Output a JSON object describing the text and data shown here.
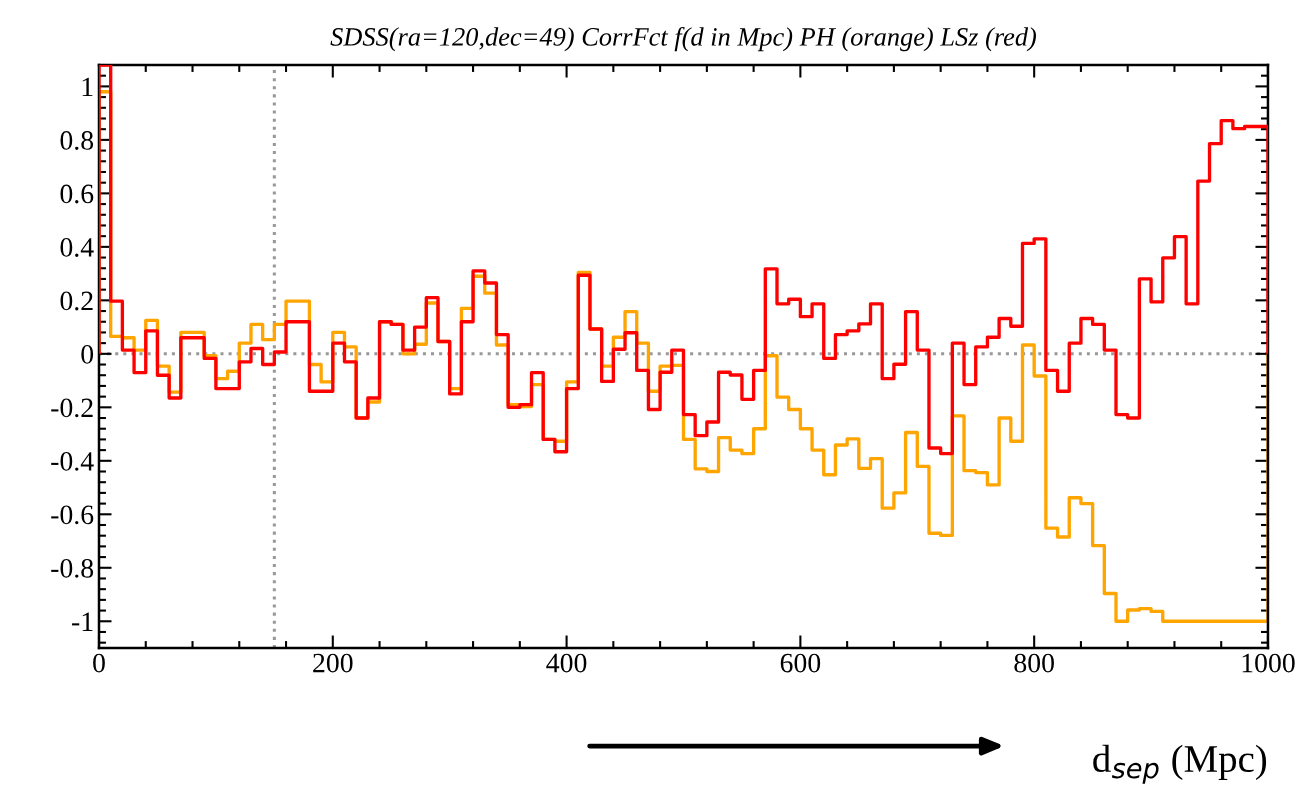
{
  "chart_data": {
    "type": "histogram",
    "title": "SDSS(ra=120,dec=49) CorrFct f(d in Mpc) PH (orange) LSz (red)",
    "xlabel": "d$_{sep}$ (Mpc)",
    "bins": [
      0,
      10,
      20,
      30,
      40,
      50,
      60,
      70,
      80,
      90,
      100,
      110,
      120,
      130,
      140,
      150,
      160,
      170,
      180,
      190,
      200,
      210,
      220,
      230,
      240,
      250,
      260,
      270,
      280,
      290,
      300,
      310,
      320,
      330,
      340,
      350,
      360,
      370,
      380,
      390,
      400,
      410,
      420,
      430,
      440,
      450,
      460,
      470,
      480,
      490,
      500,
      510,
      520,
      530,
      540,
      550,
      560,
      570,
      580,
      590,
      600,
      610,
      620,
      630,
      640,
      650,
      660,
      670,
      680,
      690,
      700,
      710,
      720,
      730,
      740,
      750,
      760,
      770,
      780,
      790,
      800,
      810,
      820,
      830,
      840,
      850,
      860,
      870,
      880,
      890,
      900,
      910,
      920,
      930,
      940,
      950,
      960,
      970,
      980,
      990,
      1000
    ],
    "series": [
      {
        "color": "#ffa500",
        "values": [
          0.98,
          0.065,
          0.06,
          0.014,
          0.125,
          -0.046,
          -0.143,
          0.08,
          0.08,
          -0.007,
          -0.093,
          -0.065,
          0.04,
          0.11,
          0.053,
          0.11,
          0.197,
          0.197,
          -0.04,
          -0.105,
          0.08,
          0.026,
          -0.24,
          -0.18,
          0.12,
          0.11,
          0.0,
          0.036,
          0.19,
          0.046,
          -0.13,
          0.17,
          0.29,
          0.227,
          0.033,
          -0.19,
          -0.197,
          -0.115,
          -0.32,
          -0.327,
          -0.105,
          0.304,
          0.093,
          -0.046,
          0.062,
          0.158,
          0.04,
          -0.14,
          -0.046,
          -0.043,
          -0.32,
          -0.43,
          -0.44,
          -0.313,
          -0.36,
          -0.373,
          -0.28,
          -0.007,
          -0.162,
          -0.208,
          -0.28,
          -0.36,
          -0.452,
          -0.341,
          -0.318,
          -0.428,
          -0.392,
          -0.577,
          -0.52,
          -0.294,
          -0.421,
          -0.671,
          -0.679,
          -0.232,
          -0.437,
          -0.444,
          -0.49,
          -0.24,
          -0.327,
          0.033,
          -0.083,
          -0.652,
          -0.685,
          -0.538,
          -0.56,
          -0.717,
          -0.896,
          -1.0,
          -0.958,
          -0.953,
          -0.963,
          -1.0,
          -1.0,
          -1.0,
          -1.0,
          -1.0,
          -1.0,
          -1.0,
          -1.0,
          -1.0
        ]
      },
      {
        "color": "#ff0000",
        "values": [
          1.08,
          0.197,
          0.014,
          -0.07,
          0.086,
          -0.08,
          -0.165,
          0.06,
          0.06,
          -0.017,
          -0.13,
          -0.13,
          -0.03,
          0.02,
          -0.04,
          0.007,
          0.12,
          0.12,
          -0.14,
          -0.14,
          0.04,
          -0.03,
          -0.24,
          -0.165,
          0.12,
          0.11,
          0.014,
          0.1,
          0.21,
          0.046,
          -0.15,
          0.12,
          0.31,
          0.265,
          0.072,
          -0.2,
          -0.19,
          -0.07,
          -0.32,
          -0.366,
          -0.13,
          0.294,
          0.093,
          -0.103,
          0.017,
          0.079,
          -0.062,
          -0.208,
          -0.069,
          0.014,
          -0.227,
          -0.306,
          -0.255,
          -0.069,
          -0.079,
          -0.17,
          -0.062,
          0.318,
          0.187,
          0.204,
          0.139,
          0.187,
          -0.017,
          0.072,
          0.086,
          0.112,
          0.187,
          -0.093,
          -0.039,
          0.158,
          0.014,
          -0.352,
          -0.373,
          0.04,
          -0.115,
          0.026,
          0.062,
          0.132,
          0.103,
          0.413,
          0.43,
          -0.062,
          -0.14,
          0.04,
          0.132,
          0.11,
          0.014,
          -0.227,
          -0.24,
          0.28,
          0.194,
          0.359,
          0.438,
          0.187,
          0.646,
          0.786,
          0.872,
          0.842,
          0.85,
          0.85
        ]
      }
    ],
    "xlim": [
      0,
      1000
    ],
    "xticks": [
      0,
      200,
      400,
      600,
      800,
      1000
    ],
    "ylim": [
      -1.1,
      1.08
    ],
    "yticks": [
      -1,
      -0.8,
      -0.6,
      -0.4,
      -0.2,
      0,
      0.2,
      0.4,
      0.6,
      0.8,
      1
    ],
    "ref_lines": [
      {
        "axis": "y",
        "value": 0,
        "color": "#999999",
        "line_style": "dotted"
      },
      {
        "axis": "x",
        "value": 150,
        "color": "#999999",
        "line_style": "dotted"
      }
    ],
    "grid": false,
    "legend": false
  }
}
